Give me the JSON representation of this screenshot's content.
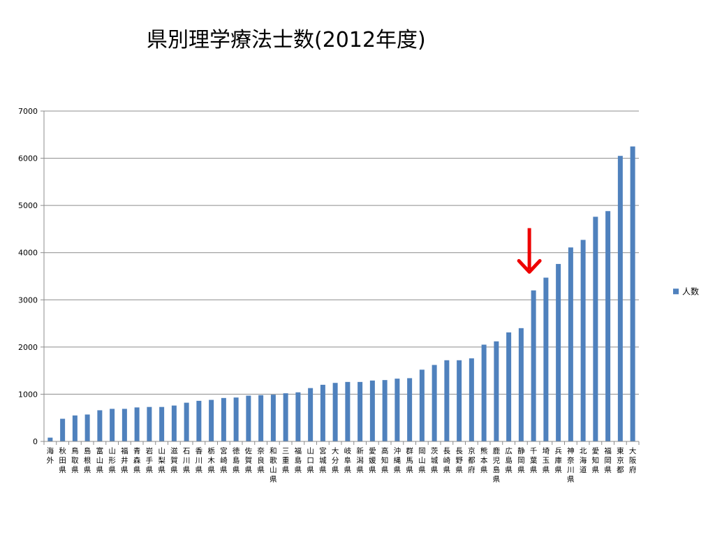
{
  "title": "県別理学療法士数(2012年度)",
  "chart_data": {
    "type": "bar",
    "title": "県別理学療法士数(2012年度)",
    "xlabel": "",
    "ylabel": "",
    "ylim": [
      0,
      7000
    ],
    "yticks": [
      0,
      1000,
      2000,
      3000,
      4000,
      5000,
      6000,
      7000
    ],
    "grid": true,
    "legend_position": "right",
    "categories": [
      "海外",
      "秋田県",
      "鳥取県",
      "島根県",
      "富山県",
      "山形県",
      "福井県",
      "青森県",
      "岩手県",
      "山梨県",
      "滋賀県",
      "石川県",
      "香川県",
      "栃木県",
      "宮崎県",
      "徳島県",
      "佐賀県",
      "奈良県",
      "和歌山県",
      "三重県",
      "福島県",
      "山口県",
      "宮城県",
      "大分県",
      "岐阜県",
      "新潟県",
      "愛媛県",
      "高知県",
      "沖縄県",
      "群馬県",
      "岡山県",
      "茨城県",
      "長崎県",
      "長野県",
      "京都府",
      "熊本県",
      "鹿児島県",
      "広島県",
      "静岡県",
      "千葉県",
      "埼玉県",
      "兵庫県",
      "神奈川県",
      "北海道",
      "愛知県",
      "福岡県",
      "東京都",
      "大阪府"
    ],
    "series": [
      {
        "name": "人数",
        "color": "#4f81bd",
        "values": [
          80,
          480,
          550,
          570,
          660,
          690,
          690,
          720,
          730,
          730,
          760,
          820,
          860,
          880,
          920,
          930,
          970,
          980,
          990,
          1020,
          1040,
          1130,
          1200,
          1240,
          1260,
          1260,
          1290,
          1300,
          1330,
          1340,
          1520,
          1620,
          1720,
          1720,
          1760,
          2050,
          2120,
          2310,
          2400,
          3200,
          3470,
          3760,
          4110,
          4270,
          4760,
          4880,
          6050,
          6250
        ]
      }
    ],
    "annotations": [
      {
        "type": "arrow",
        "direction": "down",
        "target_category": "千葉県",
        "color": "#ee0000"
      }
    ]
  }
}
